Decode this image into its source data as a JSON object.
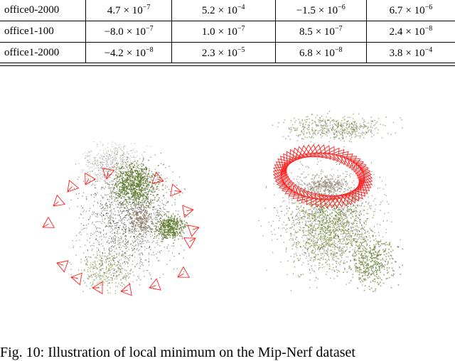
{
  "table": {
    "rows": [
      {
        "name": "office0-2000",
        "values": [
          {
            "mant": "4.7",
            "exp": "−7"
          },
          {
            "mant": "5.2",
            "exp": "−4"
          },
          {
            "mant": "−1.5",
            "exp": "−6"
          },
          {
            "mant": "6.7",
            "exp": "−6"
          }
        ]
      },
      {
        "name": "office1-100",
        "values": [
          {
            "mant": "−8.0",
            "exp": "−7"
          },
          {
            "mant": "1.0",
            "exp": "−7"
          },
          {
            "mant": "8.5",
            "exp": "−7"
          },
          {
            "mant": "2.4",
            "exp": "−8"
          }
        ]
      },
      {
        "name": "office1-2000",
        "values": [
          {
            "mant": "−4.2",
            "exp": "−8"
          },
          {
            "mant": "2.3",
            "exp": "−5"
          },
          {
            "mant": "6.8",
            "exp": "−8"
          },
          {
            "mant": "3.8",
            "exp": "−4"
          }
        ]
      }
    ],
    "times_symbol": "× 10"
  },
  "figure": {
    "colors": {
      "camera_frustum": "#ff2020",
      "vegetation": "#5f7a2e",
      "dark_points": "#2a2a22",
      "ground": "#8a7a66"
    }
  },
  "caption": {
    "text": "Fig. 10: Illustration of local minimum on the Mip-Nerf dataset"
  }
}
